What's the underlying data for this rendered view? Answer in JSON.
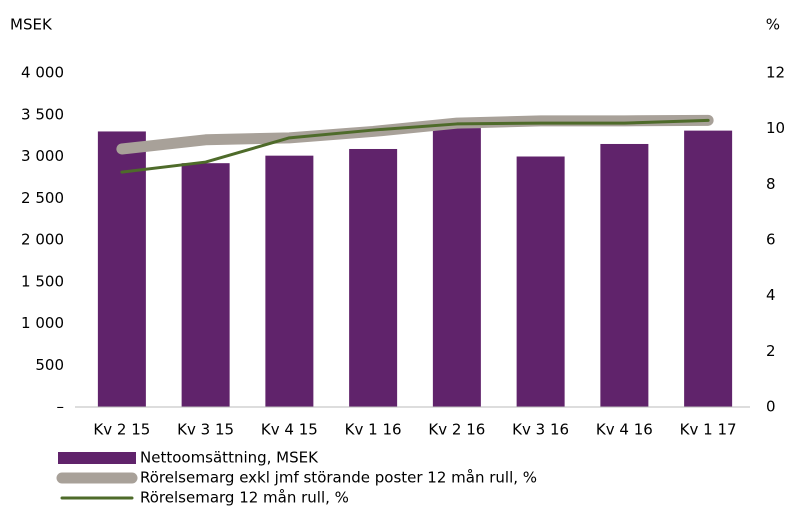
{
  "chart_data": {
    "type": "bar_line",
    "y_label": "MSEK",
    "y2_label": "%",
    "categories": [
      "Kv 2 15",
      "Kv 3 15",
      "Kv 4 15",
      "Kv 1 16",
      "Kv 2 16",
      "Kv 3 16",
      "Kv 4 16",
      "Kv 1 17"
    ],
    "series": [
      {
        "name": "Nettoomsättning, MSEK",
        "type": "bar",
        "color": "#60236b",
        "values": [
          3300,
          2920,
          3010,
          3090,
          3340,
          3000,
          3150,
          3310
        ]
      },
      {
        "name": "Rörelsemarg exkl jmf störande poster 12 mån rull, %",
        "type": "line",
        "axis": "y2",
        "color": "#a8a199",
        "values": [
          9.27,
          9.6,
          9.67,
          9.9,
          10.2,
          10.28,
          10.28,
          10.3
        ]
      },
      {
        "name": "Rörelsemarg 12 mån rull, %",
        "type": "line",
        "axis": "y2",
        "color": "#4e6b2a",
        "values": [
          8.44,
          8.8,
          9.67,
          9.95,
          10.17,
          10.2,
          10.2,
          10.3
        ]
      }
    ],
    "ylim": [
      0,
      4000
    ],
    "yticks": [
      {
        "value": 0,
        "label": "–"
      },
      500,
      {
        "value": 1000,
        "label": "1 000"
      },
      {
        "value": 1500,
        "label": "1 500"
      },
      {
        "value": 2000,
        "label": "2 000"
      },
      {
        "value": 2500,
        "label": "2 500"
      },
      {
        "value": 3000,
        "label": "3 000"
      },
      {
        "value": 3500,
        "label": "3 500"
      },
      {
        "value": 4000,
        "label": "4 000"
      }
    ],
    "y2lim": [
      0,
      12
    ],
    "y2ticks": [
      0,
      2,
      4,
      6,
      8,
      10,
      12
    ],
    "grid": false
  }
}
